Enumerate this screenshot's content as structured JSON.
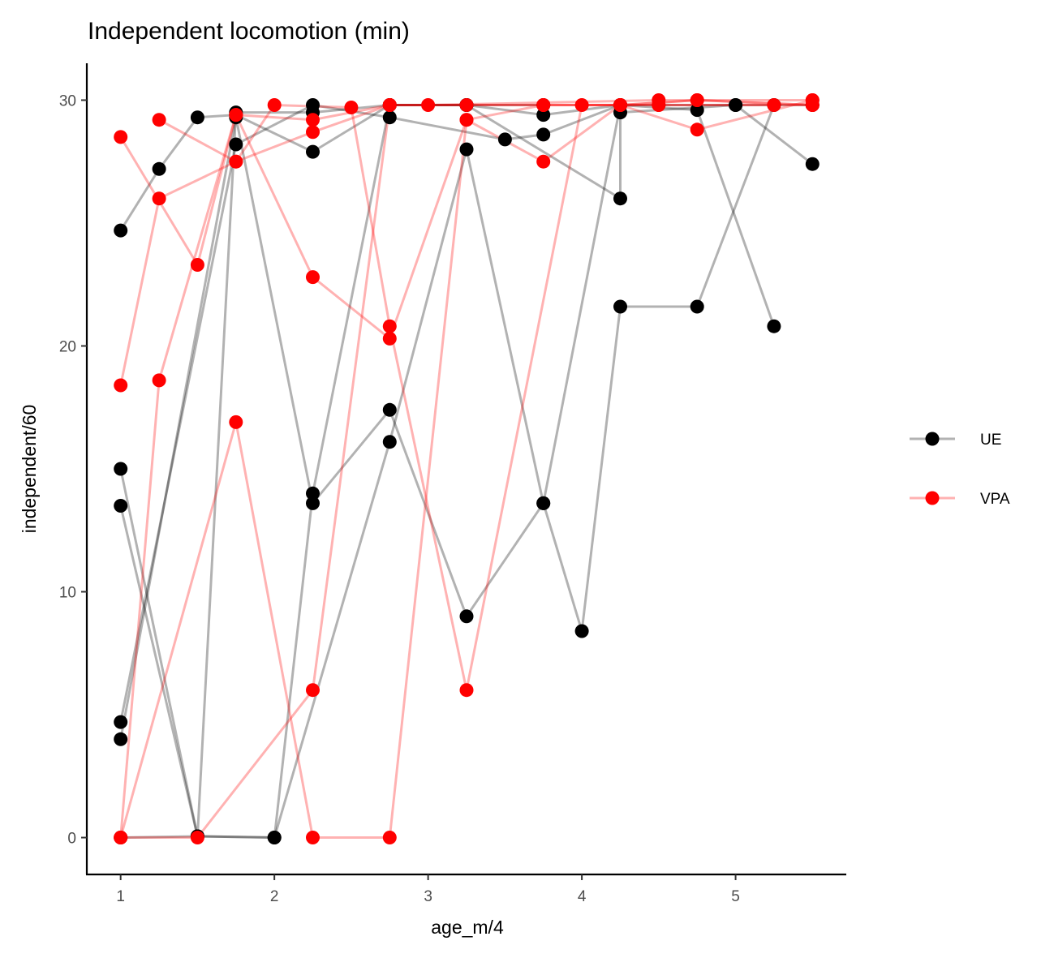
{
  "chart_data": {
    "type": "line",
    "title": "Independent locomotion (min)",
    "xlabel": "age_m/4",
    "ylabel": "independent/60",
    "xlim": [
      0.78,
      5.72
    ],
    "ylim": [
      -1.5,
      31.5
    ],
    "xticks": [
      1,
      2,
      3,
      4,
      5
    ],
    "yticks": [
      0,
      10,
      20,
      30
    ],
    "grid": false,
    "legend_position": "right",
    "colors": {
      "UE": "#000000",
      "VPA": "#ff0000"
    },
    "legend": [
      {
        "name": "UE",
        "color": "#000000"
      },
      {
        "name": "VPA",
        "color": "#ff0000"
      }
    ],
    "series": [
      {
        "group": "UE",
        "points": [
          [
            1,
            24.7
          ],
          [
            1.25,
            27.2
          ],
          [
            1.5,
            29.3
          ],
          [
            1.75,
            29.4
          ],
          [
            2.25,
            27.9
          ],
          [
            2.75,
            29.8
          ],
          [
            3.25,
            29.8
          ],
          [
            3.75,
            29.4
          ],
          [
            4.25,
            29.8
          ]
        ]
      },
      {
        "group": "UE",
        "points": [
          [
            1,
            15.0
          ],
          [
            1.5,
            0.05
          ],
          [
            1.75,
            29.5
          ],
          [
            2.25,
            29.5
          ],
          [
            2.75,
            29.8
          ],
          [
            3.25,
            29.8
          ],
          [
            3.75,
            29.8
          ]
        ]
      },
      {
        "group": "UE",
        "points": [
          [
            1,
            13.5
          ],
          [
            1.5,
            0.05
          ],
          [
            2,
            0.0
          ],
          [
            2.75,
            16.1
          ],
          [
            3.25,
            28.0
          ],
          [
            3.75,
            13.6
          ],
          [
            4.25,
            29.8
          ],
          [
            4.75,
            29.6
          ],
          [
            5.25,
            20.8
          ]
        ]
      },
      {
        "group": "UE",
        "points": [
          [
            1,
            4.7
          ],
          [
            1.75,
            28.2
          ],
          [
            2.25,
            29.8
          ],
          [
            2.75,
            29.3
          ],
          [
            3.5,
            28.4
          ],
          [
            3.75,
            28.6
          ],
          [
            4.25,
            29.8
          ],
          [
            5,
            29.8
          ],
          [
            5.5,
            27.4
          ]
        ]
      },
      {
        "group": "UE",
        "points": [
          [
            1,
            4.0
          ],
          [
            1.75,
            29.3
          ],
          [
            2.25,
            13.6
          ],
          [
            2.75,
            17.4
          ],
          [
            3.25,
            9.0
          ],
          [
            3.75,
            13.6
          ],
          [
            4,
            8.4
          ],
          [
            4.25,
            21.6
          ],
          [
            4.75,
            21.6
          ],
          [
            5.25,
            29.8
          ]
        ]
      },
      {
        "group": "UE",
        "points": [
          [
            1,
            0.0
          ],
          [
            1.5,
            0.05
          ],
          [
            2,
            0.0
          ],
          [
            2.25,
            14.0
          ],
          [
            2.75,
            29.8
          ],
          [
            3.25,
            29.8
          ],
          [
            4.25,
            26.0
          ],
          [
            4.25,
            29.5
          ],
          [
            5,
            29.8
          ],
          [
            5.5,
            29.8
          ]
        ]
      },
      {
        "group": "VPA",
        "points": [
          [
            1,
            28.5
          ],
          [
            1.5,
            23.3
          ],
          [
            1.75,
            29.4
          ],
          [
            2.25,
            22.8
          ],
          [
            2.75,
            20.3
          ],
          [
            3.25,
            29.2
          ],
          [
            3.75,
            29.8
          ],
          [
            4.5,
            29.8
          ],
          [
            5.5,
            29.8
          ]
        ]
      },
      {
        "group": "VPA",
        "points": [
          [
            1,
            18.4
          ],
          [
            1.25,
            26.0
          ],
          [
            1.75,
            27.5
          ],
          [
            2.25,
            28.7
          ],
          [
            2.75,
            29.8
          ],
          [
            3,
            29.8
          ],
          [
            4.5,
            30.0
          ],
          [
            5.5,
            30.0
          ]
        ]
      },
      {
        "group": "VPA",
        "points": [
          [
            1,
            0.0
          ],
          [
            1.25,
            18.6
          ],
          [
            1.75,
            29.4
          ],
          [
            2.25,
            29.2
          ],
          [
            2.75,
            29.8
          ],
          [
            3.75,
            29.8
          ],
          [
            4.25,
            29.8
          ],
          [
            4.75,
            28.8
          ],
          [
            5.5,
            30.0
          ]
        ]
      },
      {
        "group": "VPA",
        "points": [
          [
            1,
            0.0
          ],
          [
            1.75,
            16.9
          ],
          [
            2.25,
            0.0
          ],
          [
            2.75,
            0.0
          ],
          [
            3.25,
            29.2
          ],
          [
            3.75,
            27.5
          ],
          [
            4.25,
            29.8
          ],
          [
            4.75,
            30.0
          ],
          [
            5.5,
            29.8
          ]
        ]
      },
      {
        "group": "VPA",
        "points": [
          [
            1.25,
            29.2
          ],
          [
            1.75,
            27.5
          ],
          [
            2,
            29.8
          ],
          [
            2.5,
            29.7
          ],
          [
            2.75,
            20.8
          ],
          [
            3.25,
            6.0
          ],
          [
            4,
            29.8
          ],
          [
            4.5,
            29.8
          ],
          [
            5.25,
            29.8
          ]
        ]
      },
      {
        "group": "VPA",
        "points": [
          [
            1,
            0.0
          ],
          [
            1.5,
            0.0
          ],
          [
            2.25,
            6.0
          ],
          [
            2.75,
            29.8
          ],
          [
            3.25,
            29.8
          ],
          [
            4.25,
            29.8
          ],
          [
            4.75,
            30.0
          ],
          [
            5.5,
            29.8
          ]
        ]
      }
    ]
  }
}
